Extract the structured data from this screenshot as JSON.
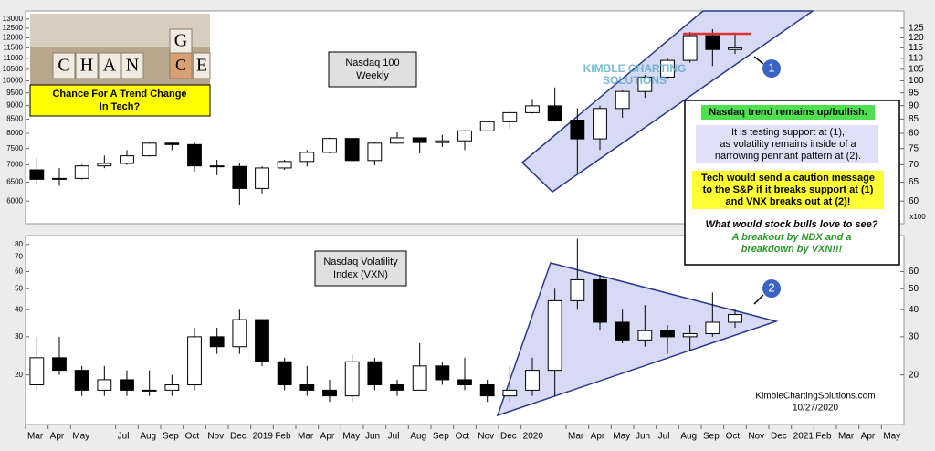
{
  "chart_data": [
    {
      "type": "candlestick",
      "title": "Nasdaq 100",
      "subtitle": "Weekly",
      "log_scale": true,
      "xlim": [
        "2018-03",
        "2021-06"
      ],
      "x": [
        "2018-03",
        "2018-04",
        "2018-05",
        "2018-06",
        "2018-07",
        "2018-08",
        "2018-09",
        "2018-10",
        "2018-11",
        "2018-12",
        "2019-01",
        "2019-02",
        "2019-03",
        "2019-04",
        "2019-05",
        "2019-06",
        "2019-07",
        "2019-08",
        "2019-09",
        "2019-10",
        "2019-11",
        "2019-12",
        "2020-01",
        "2020-02",
        "2020-03",
        "2020-04",
        "2020-05",
        "2020-06",
        "2020-07",
        "2020-08",
        "2020-09",
        "2020-10"
      ],
      "open": [
        6850,
        6581,
        6606,
        6967,
        7040,
        7272,
        7672,
        7627,
        6967,
        6950,
        6330,
        6906,
        7099,
        7378,
        7826,
        7127,
        7672,
        7848,
        7692,
        7749,
        8084,
        8403,
        8733,
        8991,
        8462,
        7813,
        8890,
        9555,
        10156,
        10905,
        12110,
        11418
      ],
      "high": [
        7200,
        6900,
        7000,
        7280,
        7450,
        7700,
        7700,
        7700,
        7150,
        7050,
        6950,
        7150,
        7450,
        7850,
        7850,
        7700,
        8030,
        7850,
        7950,
        8100,
        8420,
        8780,
        9250,
        9720,
        8900,
        9000,
        9600,
        10250,
        11000,
        12300,
        12450,
        12200
      ],
      "low": [
        6450,
        6400,
        6580,
        6900,
        7000,
        7250,
        7450,
        6800,
        6700,
        5900,
        6200,
        6850,
        6950,
        7350,
        7100,
        6980,
        7650,
        7350,
        7550,
        7450,
        8070,
        8150,
        8700,
        8400,
        6770,
        7450,
        8550,
        9300,
        10100,
        10800,
        10650,
        11200
      ],
      "close": [
        6581,
        6606,
        6967,
        7040,
        7272,
        7672,
        7627,
        6967,
        6950,
        6330,
        6906,
        7099,
        7378,
        7826,
        7127,
        7672,
        7848,
        7692,
        7749,
        8084,
        8403,
        8733,
        8991,
        8462,
        7813,
        8890,
        9555,
        10156,
        10905,
        12110,
        11418,
        11500
      ],
      "up_color": "#ffffff",
      "down_color": "#000000",
      "ylim": [
        5450,
        13450
      ],
      "yticks": [
        6000,
        6500,
        7000,
        7500,
        8000,
        8500,
        9000,
        9500,
        10000,
        10500,
        11000,
        11500,
        12000,
        12500,
        13000
      ],
      "y2lim": [
        54.5,
        134.5
      ],
      "y2ticks": [
        60,
        65,
        70,
        75,
        80,
        85,
        90,
        95,
        100,
        105,
        110,
        115,
        120,
        125
      ],
      "y2_label": "x100"
    },
    {
      "type": "candlestick",
      "title": "Nasdaq Volatility",
      "subtitle": "Index (VXN)",
      "log_scale": true,
      "xlim": [
        "2018-03",
        "2021-06"
      ],
      "x": [
        "2018-03",
        "2018-04",
        "2018-05",
        "2018-06",
        "2018-07",
        "2018-08",
        "2018-09",
        "2018-10",
        "2018-11",
        "2018-12",
        "2019-01",
        "2019-02",
        "2019-03",
        "2019-04",
        "2019-05",
        "2019-06",
        "2019-07",
        "2019-08",
        "2019-09",
        "2019-10",
        "2019-11",
        "2019-12",
        "2020-01",
        "2020-02",
        "2020-03",
        "2020-04",
        "2020-05",
        "2020-06",
        "2020-07",
        "2020-08",
        "2020-09",
        "2020-10"
      ],
      "open": [
        18,
        24,
        21,
        17,
        19,
        17,
        17,
        18,
        30,
        27,
        36,
        23,
        18,
        17,
        16,
        23,
        18,
        17,
        22,
        19,
        18,
        16,
        17,
        21,
        44,
        55,
        35,
        29,
        32,
        30,
        31,
        35
      ],
      "high": [
        30,
        30,
        22,
        22,
        21,
        21,
        20,
        33,
        33,
        40,
        36,
        24,
        22,
        19,
        25,
        24,
        19,
        28,
        23,
        24,
        19,
        22,
        24,
        50,
        85,
        58,
        40,
        42,
        34,
        34,
        48,
        40
      ],
      "low": [
        17,
        20,
        16,
        16,
        16,
        16,
        16,
        17,
        25,
        25,
        22,
        17,
        16,
        15,
        15,
        17,
        16,
        17,
        18,
        17,
        15,
        15,
        16,
        16,
        40,
        32,
        28,
        27,
        25,
        26,
        30,
        33
      ],
      "close": [
        24,
        21,
        17,
        19,
        17,
        17,
        18,
        30,
        27,
        36,
        23,
        18,
        17,
        16,
        23,
        18,
        17,
        22,
        19,
        18,
        16,
        17,
        21,
        44,
        55,
        35,
        29,
        32,
        30,
        31,
        35,
        38
      ],
      "up_color": "#ffffff",
      "down_color": "#000000",
      "ylim": [
        11.8,
        88
      ],
      "yticks": [
        20,
        30,
        40,
        50,
        60,
        70,
        80
      ],
      "y2lim": [
        11.8,
        88
      ],
      "y2ticks": [
        20,
        30,
        40,
        50,
        60
      ],
      "xticks": [
        {
          "value": "2018-03",
          "label": "Mar"
        },
        {
          "value": "2018-04",
          "label": "Apr"
        },
        {
          "value": "2018-05",
          "label": "May"
        },
        {
          "value": "2018-07",
          "label": "Jul"
        },
        {
          "value": "2018-08",
          "label": "Aug"
        },
        {
          "value": "2018-09",
          "label": "Sep"
        },
        {
          "value": "2018-10",
          "label": "Oct"
        },
        {
          "value": "2018-11",
          "label": "Nov"
        },
        {
          "value": "2018-12",
          "label": "Dec"
        },
        {
          "value": "2019-01",
          "label": "2019"
        },
        {
          "value": "2019-02",
          "label": "Feb"
        },
        {
          "value": "2019-03",
          "label": "Mar"
        },
        {
          "value": "2019-04",
          "label": "Apr"
        },
        {
          "value": "2019-05",
          "label": "May"
        },
        {
          "value": "2019-06",
          "label": "Jun"
        },
        {
          "value": "2019-07",
          "label": "Jul"
        },
        {
          "value": "2019-08",
          "label": "Aug"
        },
        {
          "value": "2019-09",
          "label": "Sep"
        },
        {
          "value": "2019-10",
          "label": "Oct"
        },
        {
          "value": "2019-11",
          "label": "Nov"
        },
        {
          "value": "2019-12",
          "label": "Dec"
        },
        {
          "value": "2020-01",
          "label": "2020"
        },
        {
          "value": "2020-03",
          "label": "Mar"
        },
        {
          "value": "2020-04",
          "label": "Apr"
        },
        {
          "value": "2020-05",
          "label": "May"
        },
        {
          "value": "2020-06",
          "label": "Jun"
        },
        {
          "value": "2020-07",
          "label": "Jul"
        },
        {
          "value": "2020-08",
          "label": "Aug"
        },
        {
          "value": "2020-09",
          "label": "Sep"
        },
        {
          "value": "2020-10",
          "label": "Oct"
        },
        {
          "value": "2020-11",
          "label": "Nov"
        },
        {
          "value": "2020-12",
          "label": "Dec"
        },
        {
          "value": "2021-01",
          "label": "2021"
        },
        {
          "value": "2021-02",
          "label": "Feb"
        },
        {
          "value": "2021-03",
          "label": "Mar"
        },
        {
          "value": "2021-04",
          "label": "Apr"
        },
        {
          "value": "2021-05",
          "label": "May"
        }
      ]
    }
  ],
  "thumbnail": {
    "letters": [
      "C",
      "H",
      "A",
      "N",
      "G",
      "C",
      "E"
    ],
    "headline": [
      "Chance For A Trend Change",
      "In Tech?"
    ]
  },
  "watermark": [
    "KIMBLE CHARTING",
    "SOLUTIONS"
  ],
  "markers": [
    "1",
    "2"
  ],
  "notes": {
    "bullish": "Nasdaq trend remains up/bullish.",
    "testing": [
      "It is testing support at (1),",
      "as volatility remains inside of a",
      "narrowing pennant pattern at (2)."
    ],
    "caution": [
      "Tech would send a caution message",
      "to the S&P if it breaks support at (1)",
      "and VNX breaks out at (2)!"
    ],
    "question": "What would stock bulls love to see?",
    "answer": [
      "A breakout by NDX and a",
      "breakdown by VXN!!!"
    ]
  },
  "credit": [
    "KimbleChartingSolutions.com",
    "10/27/2020"
  ]
}
